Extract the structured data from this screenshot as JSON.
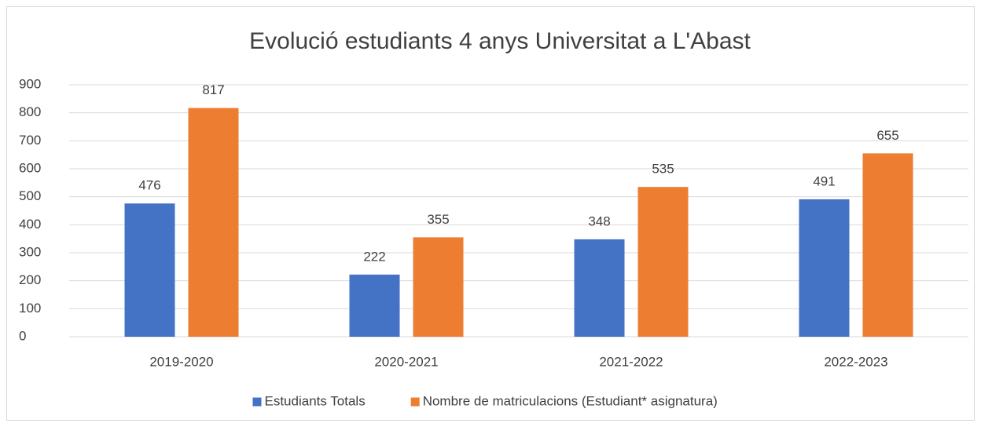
{
  "chart_data": {
    "type": "bar",
    "title": "Evolució estudiants 4 anys Universitat a L'Abast",
    "categories": [
      "2019-2020",
      "2020-2021",
      "2021-2022",
      "2022-2023"
    ],
    "series": [
      {
        "name": "Estudiants Totals",
        "color": "#4472c4",
        "values": [
          476,
          222,
          348,
          491
        ]
      },
      {
        "name": "Nombre de matriculacions (Estudiant* asignatura)",
        "color": "#ed7d31",
        "values": [
          817,
          355,
          535,
          655
        ]
      }
    ],
    "ylim": [
      0,
      900
    ],
    "yticks": [
      0,
      100,
      200,
      300,
      400,
      500,
      600,
      700,
      800,
      900
    ],
    "grid": true,
    "legend": "bottom",
    "data_labels": true
  }
}
